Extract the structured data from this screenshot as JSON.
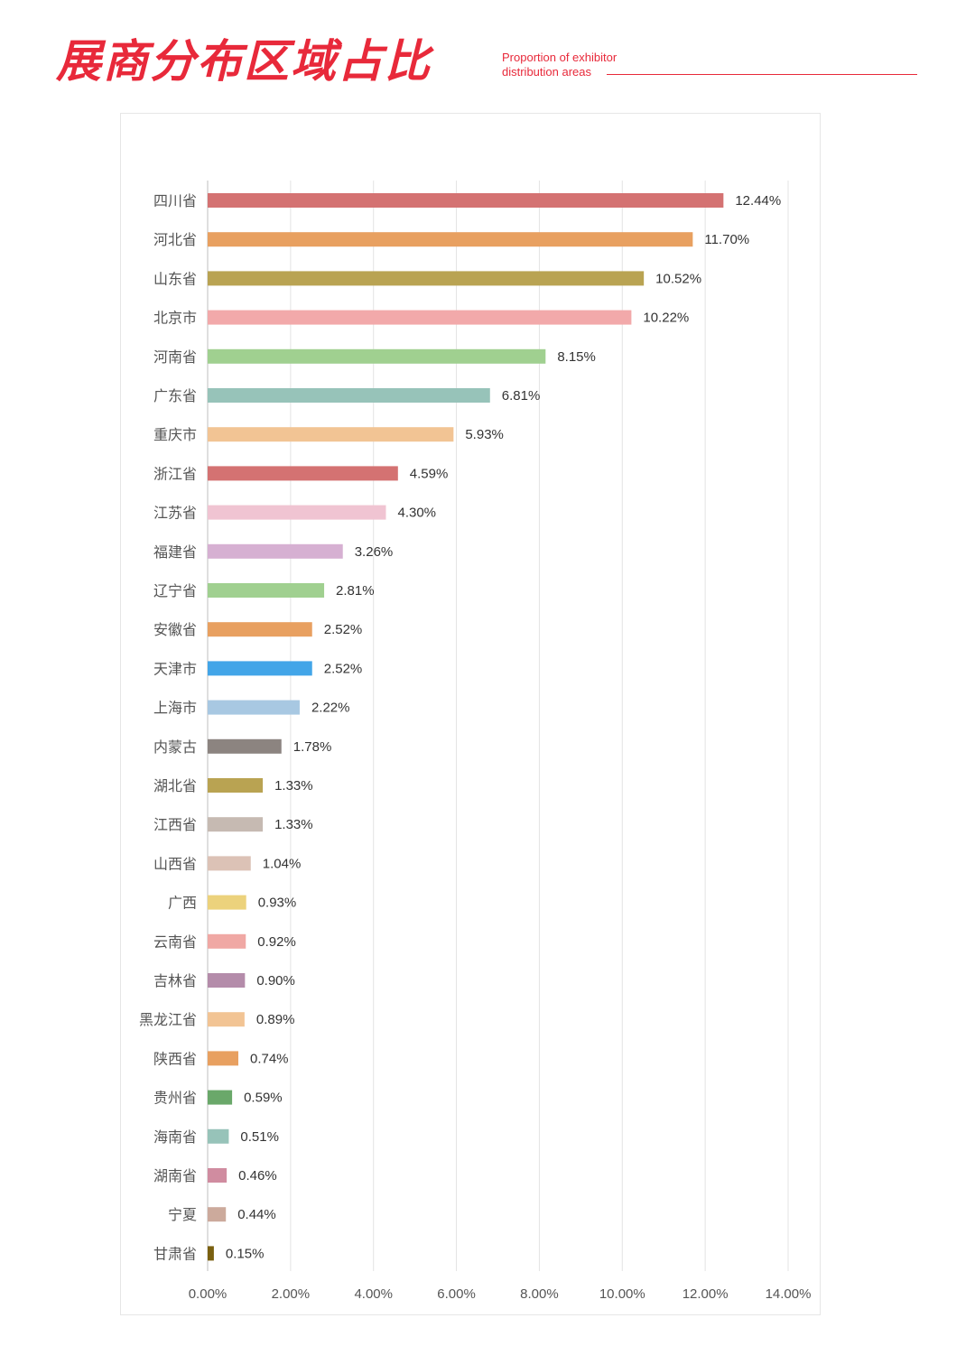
{
  "header": {
    "title_zh": "展商分布区域占比",
    "title_en_line1": "Proportion of exhibitor",
    "title_en_line2": "distribution areas"
  },
  "chart_data": {
    "type": "bar",
    "orientation": "horizontal",
    "title": "",
    "xlabel": "",
    "ylabel": "",
    "xlim": [
      0,
      14
    ],
    "x_ticks": [
      "0.00%",
      "2.00%",
      "4.00%",
      "6.00%",
      "8.00%",
      "10.00%",
      "12.00%",
      "14.00%"
    ],
    "grid": "vertical",
    "categories": [
      "四川省",
      "河北省",
      "山东省",
      "北京市",
      "河南省",
      "广东省",
      "重庆市",
      "浙江省",
      "江苏省",
      "福建省",
      "辽宁省",
      "安徽省",
      "天津市",
      "上海市",
      "内蒙古",
      "湖北省",
      "江西省",
      "山西省",
      "广西",
      "云南省",
      "吉林省",
      "黑龙江省",
      "陕西省",
      "贵州省",
      "海南省",
      "湖南省",
      "宁夏",
      "甘肃省"
    ],
    "values": [
      12.44,
      11.7,
      10.52,
      10.22,
      8.15,
      6.81,
      5.93,
      4.59,
      4.3,
      3.26,
      2.81,
      2.52,
      2.52,
      2.22,
      1.78,
      1.33,
      1.33,
      1.04,
      0.93,
      0.92,
      0.9,
      0.89,
      0.74,
      0.59,
      0.51,
      0.46,
      0.44,
      0.15
    ],
    "value_labels": [
      "12.44%",
      "11.70%",
      "10.52%",
      "10.22%",
      "8.15%",
      "6.81%",
      "5.93%",
      "4.59%",
      "4.30%",
      "3.26%",
      "2.81%",
      "2.52%",
      "2.52%",
      "2.22%",
      "1.78%",
      "1.33%",
      "1.33%",
      "1.04%",
      "0.93%",
      "0.92%",
      "0.90%",
      "0.89%",
      "0.74%",
      "0.59%",
      "0.51%",
      "0.46%",
      "0.44%",
      "0.15%"
    ],
    "colors": [
      "#d47272",
      "#e8a060",
      "#b9a352",
      "#f2a9aa",
      "#a0d090",
      "#97c3b9",
      "#f2c494",
      "#d47272",
      "#f0c4d2",
      "#d6b0d2",
      "#a0d090",
      "#e8a060",
      "#42a5e8",
      "#a8c8e2",
      "#8c8480",
      "#b9a352",
      "#c6bab2",
      "#dcc2b6",
      "#ecd27c",
      "#f0a8a4",
      "#b48caa",
      "#f2c494",
      "#e8a060",
      "#6aa86a",
      "#97c3b9",
      "#d08ca0",
      "#ccaa9c",
      "#7a6010"
    ]
  }
}
